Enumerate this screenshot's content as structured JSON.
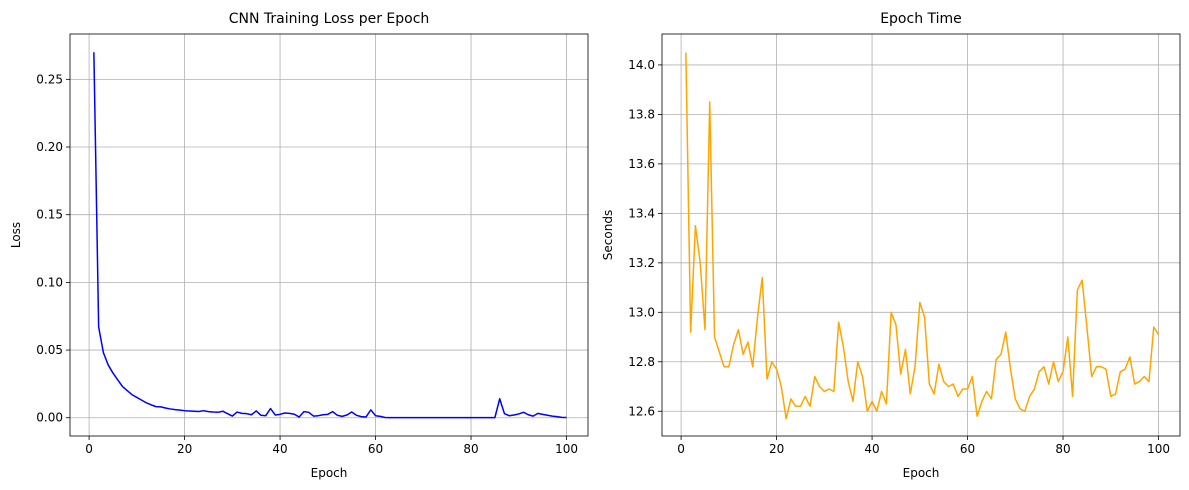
{
  "chart_data": [
    {
      "type": "line",
      "title": "CNN Training Loss per Epoch",
      "xlabel": "Epoch",
      "ylabel": "Loss",
      "xlim": [
        -4,
        104.5
      ],
      "ylim": [
        -0.0135,
        0.2835
      ],
      "xticks": [
        0,
        20,
        40,
        60,
        80,
        100
      ],
      "xtick_labels": [
        "0",
        "20",
        "40",
        "60",
        "80",
        "100"
      ],
      "yticks": [
        0,
        0.05,
        0.1,
        0.15,
        0.2,
        0.25
      ],
      "ytick_labels": [
        "0.00",
        "0.05",
        "0.10",
        "0.15",
        "0.20",
        "0.25"
      ],
      "grid": true,
      "color": "#0000ff",
      "x": [
        1,
        2,
        3,
        4,
        5,
        6,
        7,
        8,
        9,
        10,
        11,
        12,
        13,
        14,
        15,
        16,
        17,
        18,
        19,
        20,
        21,
        22,
        23,
        24,
        25,
        26,
        27,
        28,
        29,
        30,
        31,
        32,
        33,
        34,
        35,
        36,
        37,
        38,
        39,
        40,
        41,
        42,
        43,
        44,
        45,
        46,
        47,
        48,
        49,
        50,
        51,
        52,
        53,
        54,
        55,
        56,
        57,
        58,
        59,
        60,
        61,
        62,
        63,
        64,
        65,
        66,
        67,
        68,
        69,
        70,
        71,
        72,
        73,
        74,
        75,
        76,
        77,
        78,
        79,
        80,
        81,
        82,
        83,
        84,
        85,
        86,
        87,
        88,
        89,
        90,
        91,
        92,
        93,
        94,
        95,
        96,
        97,
        98,
        99,
        100
      ],
      "y": [
        0.27,
        0.067,
        0.048,
        0.039,
        0.033,
        0.028,
        0.023,
        0.02,
        0.017,
        0.015,
        0.013,
        0.011,
        0.0095,
        0.0082,
        0.008,
        0.0072,
        0.0065,
        0.006,
        0.0056,
        0.0052,
        0.005,
        0.0048,
        0.0046,
        0.0052,
        0.0045,
        0.0042,
        0.004,
        0.0048,
        0.003,
        0.0012,
        0.0042,
        0.0032,
        0.003,
        0.0022,
        0.005,
        0.0018,
        0.0015,
        0.0068,
        0.002,
        0.0025,
        0.0035,
        0.0032,
        0.0026,
        0.0005,
        0.0045,
        0.004,
        0.0012,
        0.0015,
        0.0022,
        0.0025,
        0.0045,
        0.0018,
        0.001,
        0.002,
        0.0042,
        0.0018,
        0.0008,
        0.0005,
        0.0058,
        0.0015,
        0.001,
        0.0002,
        0.0001,
        0.0001,
        0.0001,
        0.0001,
        0.0001,
        0.0001,
        0.0001,
        0.0001,
        0.0001,
        0.0001,
        0.0001,
        0.0001,
        0.0001,
        0.0001,
        0.0001,
        0.0001,
        0.0001,
        0.0001,
        0.0001,
        0.0001,
        0.0001,
        0.0001,
        0.0001,
        0.014,
        0.003,
        0.0015,
        0.002,
        0.0028,
        0.004,
        0.0022,
        0.0012,
        0.0032,
        0.0025,
        0.0018,
        0.0012,
        0.0008,
        0.0003,
        0.0002
      ]
    },
    {
      "type": "line",
      "title": "Epoch Time",
      "xlabel": "Epoch",
      "ylabel": "Seconds",
      "xlim": [
        -4,
        104.5
      ],
      "ylim": [
        12.5,
        14.125
      ],
      "xticks": [
        0,
        20,
        40,
        60,
        80,
        100
      ],
      "xtick_labels": [
        "0",
        "20",
        "40",
        "60",
        "80",
        "100"
      ],
      "yticks": [
        12.6,
        12.8,
        13.0,
        13.2,
        13.4,
        13.6,
        13.8,
        14.0
      ],
      "ytick_labels": [
        "12.6",
        "12.8",
        "13.0",
        "13.2",
        "13.4",
        "13.6",
        "13.8",
        "14.0"
      ],
      "grid": true,
      "color": "#ffa500",
      "x": [
        1,
        2,
        3,
        4,
        5,
        6,
        7,
        8,
        9,
        10,
        11,
        12,
        13,
        14,
        15,
        16,
        17,
        18,
        19,
        20,
        21,
        22,
        23,
        24,
        25,
        26,
        27,
        28,
        29,
        30,
        31,
        32,
        33,
        34,
        35,
        36,
        37,
        38,
        39,
        40,
        41,
        42,
        43,
        44,
        45,
        46,
        47,
        48,
        49,
        50,
        51,
        52,
        53,
        54,
        55,
        56,
        57,
        58,
        59,
        60,
        61,
        62,
        63,
        64,
        65,
        66,
        67,
        68,
        69,
        70,
        71,
        72,
        73,
        74,
        75,
        76,
        77,
        78,
        79,
        80,
        81,
        82,
        83,
        84,
        85,
        86,
        87,
        88,
        89,
        90,
        91,
        92,
        93,
        94,
        95,
        96,
        97,
        98,
        99,
        100
      ],
      "y": [
        14.05,
        12.92,
        13.35,
        13.2,
        12.93,
        13.85,
        12.9,
        12.84,
        12.78,
        12.78,
        12.87,
        12.93,
        12.83,
        12.88,
        12.78,
        12.98,
        13.14,
        12.73,
        12.8,
        12.77,
        12.7,
        12.57,
        12.65,
        12.62,
        12.62,
        12.66,
        12.62,
        12.74,
        12.7,
        12.68,
        12.69,
        12.68,
        12.96,
        12.86,
        12.72,
        12.64,
        12.8,
        12.74,
        12.6,
        12.64,
        12.6,
        12.68,
        12.63,
        13.0,
        12.95,
        12.75,
        12.85,
        12.67,
        12.78,
        13.04,
        12.98,
        12.71,
        12.67,
        12.79,
        12.72,
        12.7,
        12.71,
        12.66,
        12.69,
        12.69,
        12.74,
        12.58,
        12.64,
        12.68,
        12.65,
        12.81,
        12.83,
        12.92,
        12.77,
        12.65,
        12.61,
        12.6,
        12.66,
        12.69,
        12.76,
        12.78,
        12.71,
        12.8,
        12.72,
        12.76,
        12.9,
        12.66,
        13.09,
        13.13,
        12.94,
        12.74,
        12.78,
        12.78,
        12.77,
        12.66,
        12.67,
        12.76,
        12.77,
        12.82,
        12.71,
        12.72,
        12.74,
        12.72,
        12.94,
        12.91
      ]
    }
  ]
}
